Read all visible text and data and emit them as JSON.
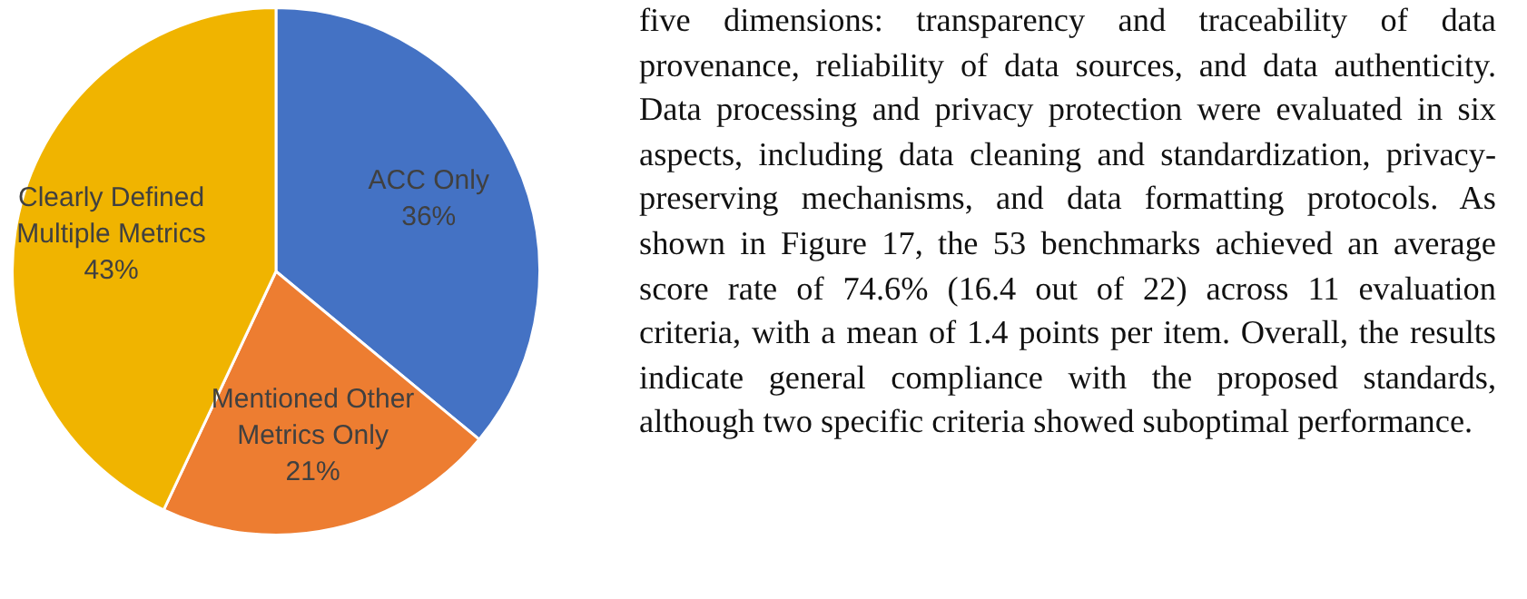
{
  "chart_data": {
    "type": "pie",
    "categories": [
      "ACC Only",
      "Mentioned Other Metrics Only",
      "Clearly Defined Multiple Metrics"
    ],
    "values": [
      36,
      21,
      43
    ],
    "colors": [
      "#4472c4",
      "#ed7d31",
      "#f0b400"
    ],
    "value_labels": [
      "36%",
      "21%",
      "43%"
    ],
    "legend": false,
    "annotations": [
      "five dimensions: transparency and traceability of data provenance, reliability of data sources, and data authenticity. Data processing and privacy protection were evaluated in six aspects, including data cleaning and standardization, privacy-preserving mechanisms, and data formatting protocols.  As shown in Figure 17, the 53 benchmarks achieved an average score rate of 74.6% (16.4 out of 22) across 11 evaluation criteria, with a mean of 1.4 points per item. Overall, the results indicate general compliance with the proposed standards, although two specific criteria showed suboptimal performance."
    ]
  }
}
